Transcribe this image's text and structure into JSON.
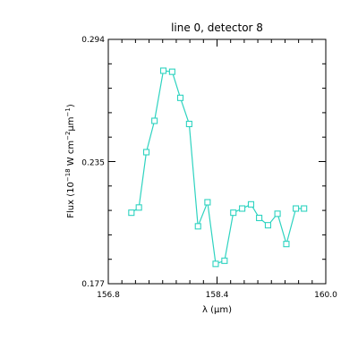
{
  "chart_data": {
    "type": "line",
    "title": "line 0, detector 8",
    "xlabel": "λ (μm)",
    "ylabel_prefix": "Flux (10",
    "ylabel_exp1": "−18",
    "ylabel_mid": " W cm",
    "ylabel_exp2": "−2",
    "ylabel_unit": "μm",
    "ylabel_exp3": "−1",
    "ylabel_suffix": ")",
    "xlim": [
      156.8,
      160.0
    ],
    "ylim": [
      0.177,
      0.294
    ],
    "x_ticks": [
      "156.8",
      "158.4",
      "160.0"
    ],
    "y_ticks": [
      "0.294",
      "0.235",
      "0.177"
    ],
    "grid": false,
    "series": [
      {
        "color": "#2ed3c0",
        "marker": "square",
        "x": [
          157.14,
          157.25,
          157.36,
          157.48,
          157.61,
          157.74,
          157.86,
          157.99,
          158.12,
          158.26,
          158.38,
          158.51,
          158.64,
          158.77,
          158.9,
          159.02,
          159.15,
          159.29,
          159.42,
          159.56,
          159.68
        ],
        "y": [
          0.211,
          0.2135,
          0.24,
          0.255,
          0.279,
          0.2785,
          0.266,
          0.2535,
          0.2045,
          0.216,
          0.1865,
          0.188,
          0.211,
          0.213,
          0.215,
          0.2085,
          0.205,
          0.2105,
          0.196,
          0.213,
          0.213
        ]
      }
    ]
  }
}
